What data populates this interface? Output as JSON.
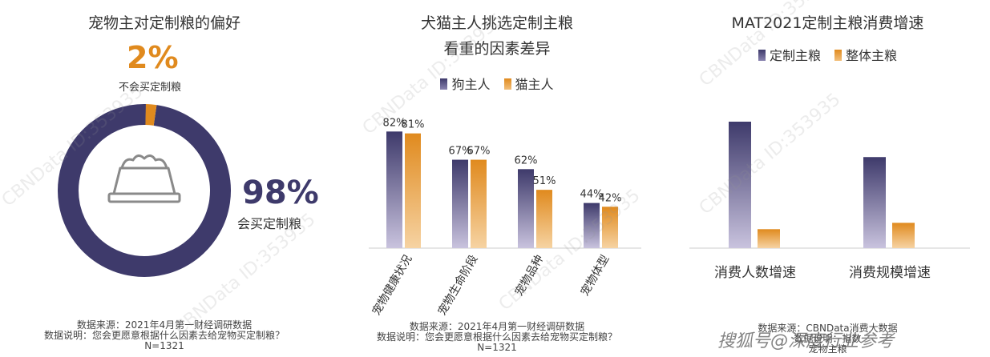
{
  "colors": {
    "purple": "#3e3a6b",
    "orange": "#e08a1e",
    "purple_light": "#c9c3de",
    "orange_light": "#f6d3a3"
  },
  "panel1": {
    "title": "宠物主对定制粮的偏好",
    "small_pct": "2%",
    "small_label": "不会买定制粮",
    "big_pct": "98%",
    "big_label": "会买定制粮",
    "icon": "pet-food-bowl-icon",
    "footer": [
      "数据来源：2021年4月第一财经调研数据",
      "数据说明：您会更愿意根据什么因素去给宠物买定制粮？",
      "N=1321"
    ]
  },
  "panel2": {
    "title": [
      "犬猫主人挑选定制主粮",
      "看重的因素差异"
    ],
    "footer": [
      "数据来源：2021年4月第一财经调研数据",
      "数据说明：您会更愿意根据什么因素去给宠物买定制粮？",
      "N=1321"
    ]
  },
  "panel3": {
    "title": "MAT2021定制主粮消费增速",
    "footer": [
      "数据来源：CBNData消费大数据",
      "数据说明：指数",
      "宠物主粮"
    ]
  },
  "watermark": "CBNData ID:353935",
  "overlay_text": "搜狐号@深度行业参考",
  "chart_data": [
    {
      "type": "pie",
      "title": "宠物主对定制粮的偏好",
      "labels": [
        "会买定制粮",
        "不会买定制粮"
      ],
      "values": [
        98,
        2
      ],
      "unit": "%"
    },
    {
      "type": "bar",
      "title": "犬猫主人挑选定制主粮看重的因素差异",
      "categories": [
        "宠物健康状况",
        "宠物生命阶段",
        "宠物品种",
        "宠物体型"
      ],
      "series": [
        {
          "name": "狗主人",
          "values": [
            82,
            67,
            62,
            44
          ],
          "color": "#3e3a6b"
        },
        {
          "name": "猫主人",
          "values": [
            81,
            67,
            51,
            42
          ],
          "color": "#e08a1e"
        }
      ],
      "unit": "%",
      "ylim": [
        0,
        100
      ],
      "legend": "top-center"
    },
    {
      "type": "bar",
      "title": "MAT2021定制主粮消费增速",
      "categories": [
        "消费人数增速",
        "消费规模增速"
      ],
      "series": [
        {
          "name": "定制主粮",
          "values": [
            100,
            72
          ],
          "color": "#3e3a6b"
        },
        {
          "name": "整体主粮",
          "values": [
            15,
            20
          ],
          "color": "#e08a1e"
        }
      ],
      "ylim": [
        0,
        110
      ],
      "legend": "top-center"
    }
  ]
}
